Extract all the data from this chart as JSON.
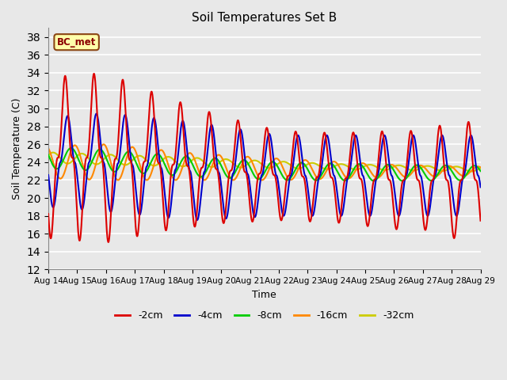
{
  "title": "Soil Temperatures Set B",
  "xlabel": "Time",
  "ylabel": "Soil Temperature (C)",
  "ylim": [
    12,
    39
  ],
  "yticks": [
    12,
    14,
    16,
    18,
    20,
    22,
    24,
    26,
    28,
    30,
    32,
    34,
    36,
    38
  ],
  "date_labels": [
    "Aug 14",
    "Aug 15",
    "Aug 16",
    "Aug 17",
    "Aug 18",
    "Aug 19",
    "Aug 20",
    "Aug 21",
    "Aug 22",
    "Aug 23",
    "Aug 24",
    "Aug 25",
    "Aug 26",
    "Aug 27",
    "Aug 28",
    "Aug 29"
  ],
  "colors": {
    "-2cm": "#dd0000",
    "-4cm": "#0000cc",
    "-8cm": "#00cc00",
    "-16cm": "#ff8800",
    "-32cm": "#cccc00"
  },
  "annotation_text": "BC_met",
  "background_color": "#e8e8e8",
  "plot_background": "#e8e8e8",
  "grid_color": "#ffffff",
  "linewidth": 1.5
}
